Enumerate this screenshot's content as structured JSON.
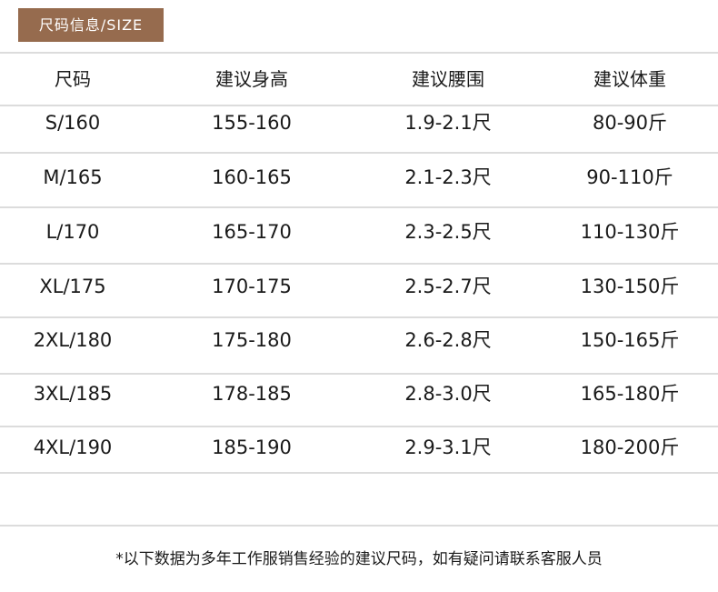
{
  "title": "尺码信息/SIZE",
  "headers": [
    "尺码",
    "建议身高",
    "建议腰围",
    "建议体重"
  ],
  "rows": [
    [
      "S/160",
      "155-160",
      "1.9-2.1尺",
      "80-90斤"
    ],
    [
      "M/165",
      "160-165",
      "2.1-2.3尺",
      "90-110斤"
    ],
    [
      "L/170",
      "165-170",
      "2.3-2.5尺",
      "110-130斤"
    ],
    [
      "XL/175",
      "170-175",
      "2.5-2.7尺",
      "130-150斤"
    ],
    [
      "2XL/180",
      "175-180",
      "2.6-2.8尺",
      "150-165斤"
    ],
    [
      "3XL/185",
      "178-185",
      "2.8-3.0尺",
      "165-180斤"
    ],
    [
      "4XL/190",
      "185-190",
      "2.9-3.1尺",
      "180-200斤"
    ]
  ],
  "note": "*以下数据为多年工作服销售经验的建议尺码，如有疑问请联系客服人员",
  "colors": {
    "badge": "#966b4e",
    "divider": "#dcdcdc"
  }
}
